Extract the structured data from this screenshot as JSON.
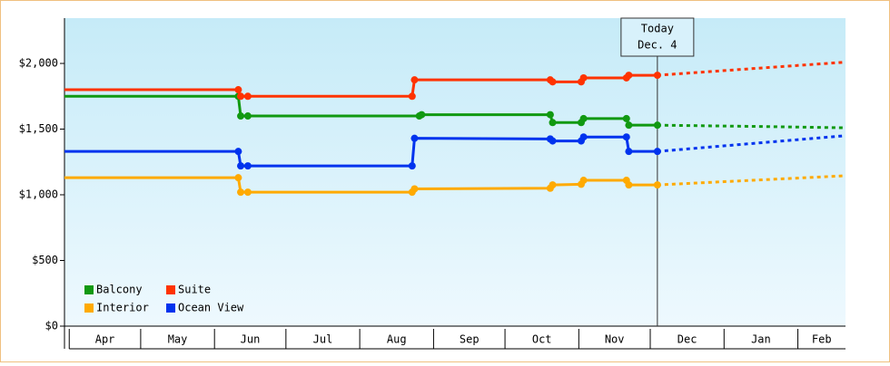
{
  "chart_data": {
    "type": "line",
    "ylim": [
      0,
      2345
    ],
    "yticks": [
      {
        "value": 0,
        "label": "$0"
      },
      {
        "value": 500,
        "label": "$500"
      },
      {
        "value": 1000,
        "label": "$1,000"
      },
      {
        "value": 1500,
        "label": "$1,500"
      },
      {
        "value": 2000,
        "label": "$2,000"
      }
    ],
    "xlim": [
      -2,
      326
    ],
    "xticks": [
      0,
      30,
      61,
      91,
      122,
      153,
      183,
      214,
      244,
      275,
      306
    ],
    "months": [
      "Apr",
      "May",
      "Jun",
      "Jul",
      "Aug",
      "Sep",
      "Oct",
      "Nov",
      "Dec",
      "Jan",
      "Feb"
    ],
    "annotation": {
      "lines": [
        "Today",
        "Dec. 4"
      ],
      "x": 247
    },
    "series": [
      {
        "name": "Balcony",
        "color": "#119911",
        "x": [
          -2,
          71,
          72,
          75,
          147,
          148,
          202,
          203,
          215,
          216,
          234,
          235,
          247
        ],
        "values": [
          1750,
          1750,
          1600,
          1600,
          1600,
          1610,
          1610,
          1550,
          1550,
          1580,
          1580,
          1530,
          1530
        ],
        "forecast_x": [
          247,
          290,
          326
        ],
        "forecast_values": [
          1530,
          1520,
          1510
        ]
      },
      {
        "name": "Suite",
        "color": "#ff3300",
        "x": [
          -2,
          71,
          72,
          75,
          144,
          145,
          202,
          203,
          215,
          216,
          234,
          235,
          247
        ],
        "values": [
          1800,
          1800,
          1750,
          1750,
          1750,
          1875,
          1875,
          1860,
          1860,
          1890,
          1890,
          1910,
          1910
        ],
        "forecast_x": [
          247,
          326
        ],
        "forecast_values": [
          1910,
          2010
        ]
      },
      {
        "name": "Interior",
        "color": "#ffaa00",
        "x": [
          -2,
          71,
          72,
          75,
          144,
          145,
          202,
          203,
          215,
          216,
          234,
          235,
          247
        ],
        "values": [
          1130,
          1130,
          1020,
          1020,
          1020,
          1045,
          1050,
          1075,
          1080,
          1110,
          1110,
          1075,
          1075
        ],
        "forecast_x": [
          247,
          326
        ],
        "forecast_values": [
          1075,
          1145
        ]
      },
      {
        "name": "Ocean View",
        "color": "#0033ee",
        "x": [
          -2,
          71,
          72,
          75,
          144,
          145,
          202,
          203,
          215,
          216,
          234,
          235,
          247
        ],
        "values": [
          1330,
          1330,
          1220,
          1220,
          1220,
          1430,
          1425,
          1410,
          1410,
          1440,
          1440,
          1330,
          1330
        ],
        "forecast_x": [
          247,
          326
        ],
        "forecast_values": [
          1330,
          1450
        ]
      }
    ]
  }
}
